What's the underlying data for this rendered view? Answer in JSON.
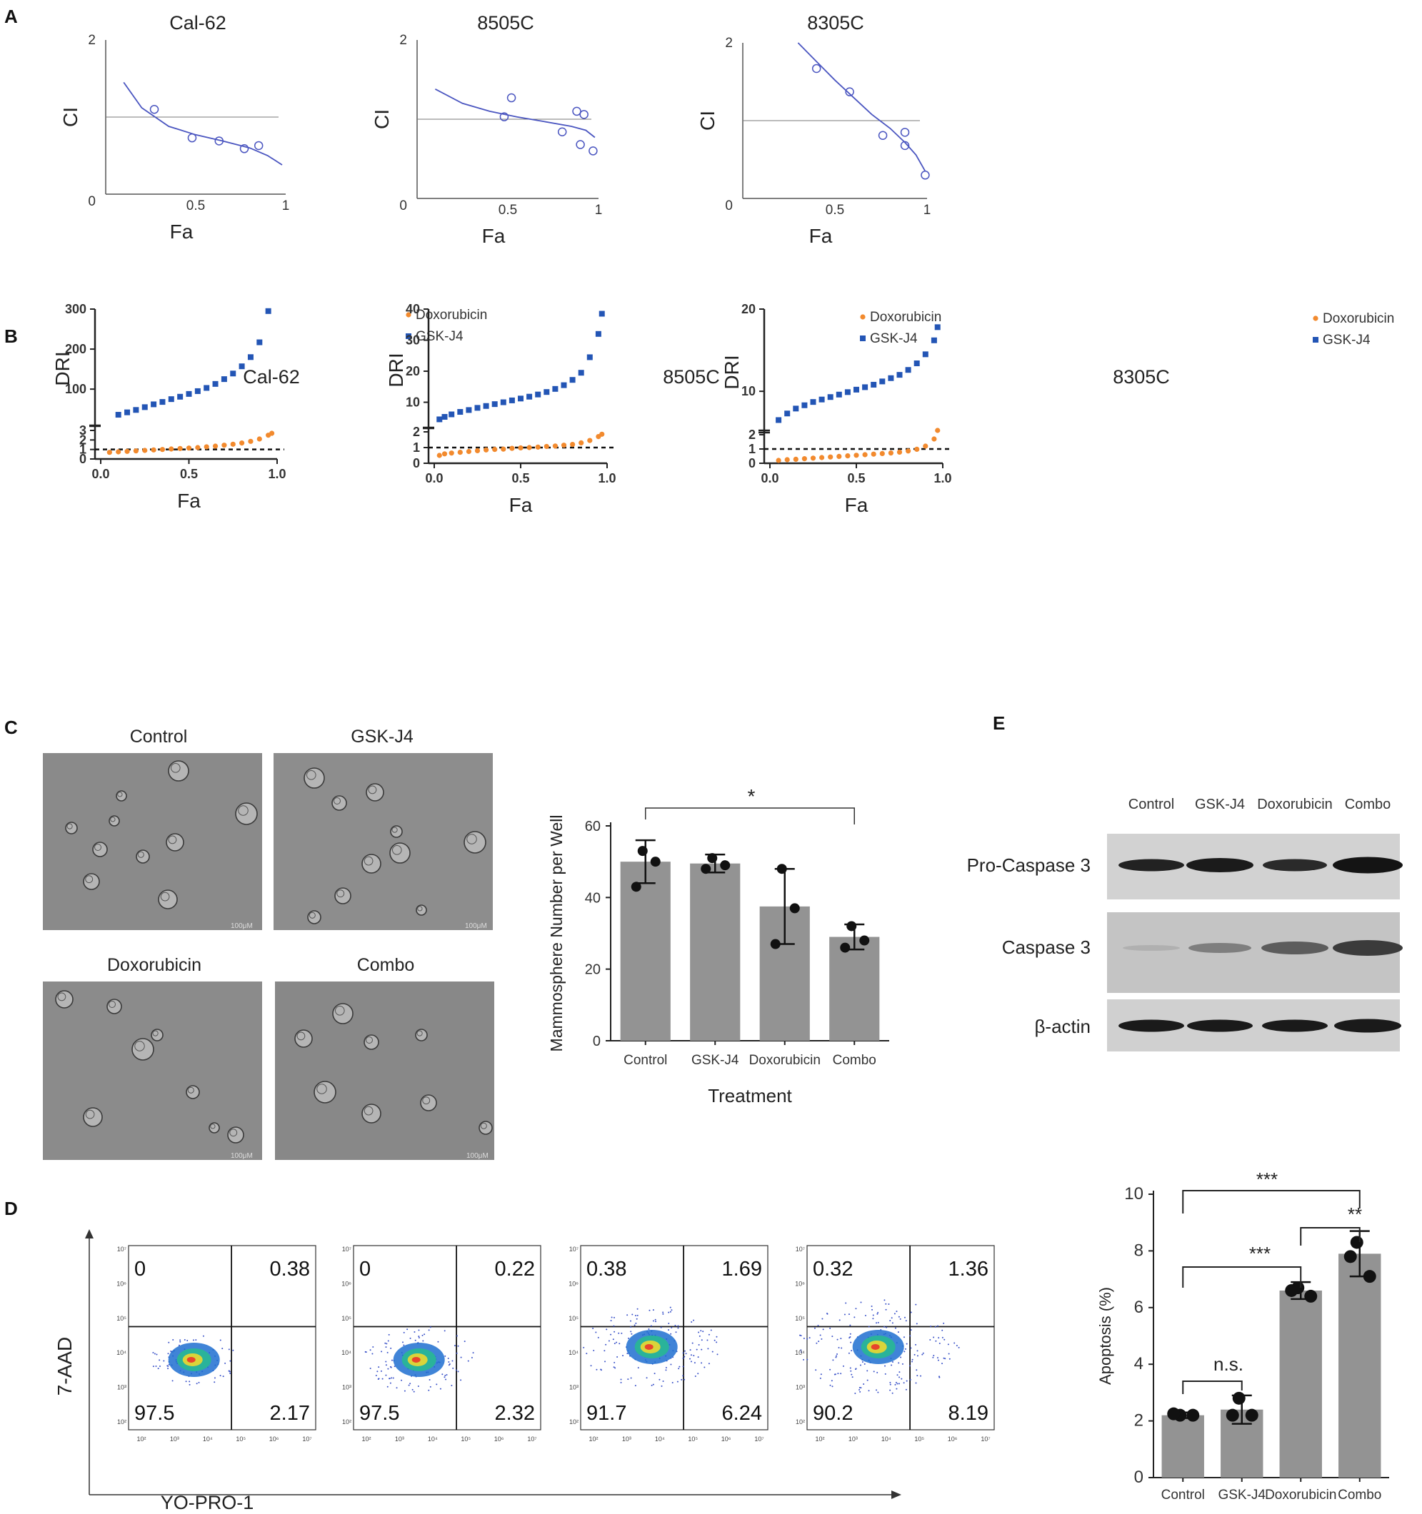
{
  "panels": {
    "A": "A",
    "B": "B",
    "C": "C",
    "D": "D",
    "E": "E"
  },
  "colors": {
    "ci_line": "#4a55c0",
    "dox": "#f28a2e",
    "gsk": "#2355b5",
    "bar": "#939393",
    "refline": "#555555"
  },
  "panelA": {
    "xlabel": "Fa",
    "ylabel": "CI",
    "tick_x": [
      "0.5",
      "1"
    ],
    "tick_y_top": "2",
    "tick_zero": "0"
  },
  "panelB": {
    "xlabel": "Fa",
    "ylabel": "DRI",
    "legend_dox": "Doxorubicin",
    "legend_gsk": "GSK-J4",
    "tick_x": [
      "0.0",
      "0.5",
      "1.0"
    ]
  },
  "panelC": {
    "images": [
      {
        "label": "Control",
        "scale": "100μM"
      },
      {
        "label": "GSK-J4",
        "scale": "100μM"
      },
      {
        "label": "Doxorubicin",
        "scale": "100μM"
      },
      {
        "label": "Combo",
        "scale": "100μM"
      }
    ],
    "sig": "*"
  },
  "panelD": {
    "xaxis": "YO-PRO-1",
    "yaxis": "7-AAD",
    "plots": [
      {
        "ul": "0",
        "ur": "0.38",
        "ll": "97.5",
        "lr": "2.17"
      },
      {
        "ul": "0",
        "ur": "0.22",
        "ll": "97.5",
        "lr": "2.32"
      },
      {
        "ul": "0.38",
        "ur": "1.69",
        "ll": "91.7",
        "lr": "6.24"
      },
      {
        "ul": "0.32",
        "ur": "1.36",
        "ll": "90.2",
        "lr": "8.19"
      }
    ],
    "exp_labels": [
      "10²",
      "10³",
      "10⁴",
      "10⁵",
      "10⁶",
      "10⁷"
    ],
    "sig": {
      "a": "***",
      "b": "***",
      "c": "**",
      "ns": "n.s."
    }
  },
  "panelE": {
    "columns": [
      "Control",
      "GSK-J4",
      "Doxorubicin",
      "Combo"
    ],
    "rows": [
      "Pro-Caspase 3",
      "Caspase 3",
      "β-actin"
    ]
  },
  "chart_data": [
    {
      "id": "A-Cal-62",
      "type": "scatter",
      "title": "Cal-62",
      "xlabel": "Fa",
      "ylabel": "CI",
      "xlim": [
        0,
        1
      ],
      "ylim": [
        0,
        2
      ],
      "points": [
        [
          0.27,
          1.1
        ],
        [
          0.48,
          0.73
        ],
        [
          0.63,
          0.69
        ],
        [
          0.77,
          0.59
        ],
        [
          0.85,
          0.63
        ]
      ],
      "fit": [
        [
          0.1,
          1.45
        ],
        [
          0.2,
          1.12
        ],
        [
          0.35,
          0.88
        ],
        [
          0.5,
          0.77
        ],
        [
          0.65,
          0.69
        ],
        [
          0.8,
          0.6
        ],
        [
          0.9,
          0.5
        ],
        [
          0.98,
          0.38
        ]
      ],
      "reference": 1
    },
    {
      "id": "A-8505C",
      "type": "scatter",
      "title": "8505C",
      "xlabel": "Fa",
      "ylabel": "CI",
      "xlim": [
        0,
        1
      ],
      "ylim": [
        0,
        2
      ],
      "points": [
        [
          0.48,
          1.03
        ],
        [
          0.52,
          1.27
        ],
        [
          0.8,
          0.84
        ],
        [
          0.88,
          1.1
        ],
        [
          0.92,
          1.06
        ],
        [
          0.9,
          0.68
        ],
        [
          0.97,
          0.6
        ]
      ],
      "fit": [
        [
          0.1,
          1.38
        ],
        [
          0.25,
          1.2
        ],
        [
          0.4,
          1.1
        ],
        [
          0.55,
          1.03
        ],
        [
          0.7,
          0.97
        ],
        [
          0.85,
          0.91
        ],
        [
          0.93,
          0.86
        ],
        [
          0.98,
          0.77
        ]
      ],
      "reference": 1
    },
    {
      "id": "A-8305C",
      "type": "scatter",
      "title": "8305C",
      "xlabel": "Fa",
      "ylabel": "CI",
      "xlim": [
        0,
        1
      ],
      "ylim": [
        0,
        2
      ],
      "points": [
        [
          0.4,
          1.67
        ],
        [
          0.58,
          1.37
        ],
        [
          0.76,
          0.81
        ],
        [
          0.88,
          0.85
        ],
        [
          0.88,
          0.68
        ],
        [
          0.99,
          0.3
        ]
      ],
      "fit": [
        [
          0.3,
          2.0
        ],
        [
          0.4,
          1.76
        ],
        [
          0.5,
          1.52
        ],
        [
          0.6,
          1.3
        ],
        [
          0.7,
          1.08
        ],
        [
          0.8,
          0.9
        ],
        [
          0.88,
          0.72
        ],
        [
          0.94,
          0.56
        ],
        [
          0.99,
          0.35
        ]
      ],
      "reference": 1
    },
    {
      "id": "B-Cal-62",
      "type": "scatter",
      "title": "Cal-62",
      "xlabel": "Fa",
      "ylabel": "DRI",
      "xlim": [
        0,
        1
      ],
      "ylim_top": [
        0,
        300
      ],
      "ylim_bottom": [
        0,
        3
      ],
      "yticks_top": [
        100,
        200,
        300
      ],
      "yticks_bottom": [
        0,
        1,
        2,
        3
      ],
      "series": [
        {
          "name": "GSK-J4",
          "x": [
            0.1,
            0.15,
            0.2,
            0.25,
            0.3,
            0.35,
            0.4,
            0.45,
            0.5,
            0.55,
            0.6,
            0.65,
            0.7,
            0.75,
            0.8,
            0.85,
            0.9,
            0.95
          ],
          "y": [
            36,
            42,
            48,
            55,
            62,
            68,
            75,
            81,
            88,
            95,
            103,
            113,
            125,
            139,
            157,
            180,
            217,
            295
          ]
        },
        {
          "name": "Doxorubicin",
          "x": [
            0.05,
            0.1,
            0.15,
            0.2,
            0.25,
            0.3,
            0.35,
            0.4,
            0.45,
            0.5,
            0.55,
            0.6,
            0.65,
            0.7,
            0.75,
            0.8,
            0.85,
            0.9,
            0.95,
            0.97
          ],
          "y": [
            0.7,
            0.75,
            0.8,
            0.85,
            0.9,
            0.95,
            1.0,
            1.05,
            1.1,
            1.15,
            1.2,
            1.28,
            1.35,
            1.45,
            1.55,
            1.68,
            1.85,
            2.1,
            2.5,
            2.7
          ]
        }
      ],
      "reference": 1
    },
    {
      "id": "B-8505C",
      "type": "scatter",
      "title": "8505C",
      "xlabel": "Fa",
      "ylabel": "DRI",
      "xlim": [
        0,
        1
      ],
      "ylim_top": [
        0,
        40
      ],
      "ylim_bottom": [
        0,
        2
      ],
      "yticks_top": [
        10,
        20,
        30,
        40
      ],
      "yticks_bottom": [
        0,
        1,
        2
      ],
      "series": [
        {
          "name": "GSK-J4",
          "x": [
            0.03,
            0.06,
            0.1,
            0.15,
            0.2,
            0.25,
            0.3,
            0.35,
            0.4,
            0.45,
            0.5,
            0.55,
            0.6,
            0.65,
            0.7,
            0.75,
            0.8,
            0.85,
            0.9,
            0.95,
            0.97
          ],
          "y": [
            4.5,
            5.3,
            6.1,
            6.9,
            7.5,
            8.2,
            8.8,
            9.4,
            10.0,
            10.6,
            11.2,
            11.8,
            12.5,
            13.3,
            14.3,
            15.5,
            17.2,
            19.5,
            24.5,
            32,
            38.5
          ]
        },
        {
          "name": "Doxorubicin",
          "x": [
            0.03,
            0.06,
            0.1,
            0.15,
            0.2,
            0.25,
            0.3,
            0.35,
            0.4,
            0.45,
            0.5,
            0.55,
            0.6,
            0.65,
            0.7,
            0.75,
            0.8,
            0.85,
            0.9,
            0.95,
            0.97
          ],
          "y": [
            0.5,
            0.6,
            0.65,
            0.7,
            0.75,
            0.8,
            0.85,
            0.88,
            0.9,
            0.95,
            0.98,
            1.0,
            1.03,
            1.07,
            1.1,
            1.15,
            1.2,
            1.3,
            1.45,
            1.7,
            1.85
          ]
        }
      ],
      "reference": 1
    },
    {
      "id": "B-8305C",
      "type": "scatter",
      "title": "8305C",
      "xlabel": "Fa",
      "ylabel": "DRI",
      "xlim": [
        0,
        1
      ],
      "ylim_top": [
        0,
        20
      ],
      "ylim_bottom": [
        0,
        2
      ],
      "yticks_top": [
        10,
        20
      ],
      "yticks_bottom": [
        0,
        1,
        2
      ],
      "series": [
        {
          "name": "GSK-J4",
          "x": [
            0.05,
            0.1,
            0.15,
            0.2,
            0.25,
            0.3,
            0.35,
            0.4,
            0.45,
            0.5,
            0.55,
            0.6,
            0.65,
            0.7,
            0.75,
            0.8,
            0.85,
            0.9,
            0.95,
            0.97
          ],
          "y": [
            6.5,
            7.3,
            7.9,
            8.3,
            8.7,
            9.0,
            9.3,
            9.6,
            9.9,
            10.2,
            10.5,
            10.8,
            11.2,
            11.6,
            12.0,
            12.6,
            13.4,
            14.5,
            16.2,
            17.8
          ]
        },
        {
          "name": "Doxorubicin",
          "x": [
            0.05,
            0.1,
            0.15,
            0.2,
            0.25,
            0.3,
            0.35,
            0.4,
            0.45,
            0.5,
            0.55,
            0.6,
            0.65,
            0.7,
            0.75,
            0.8,
            0.85,
            0.9,
            0.95,
            0.97
          ],
          "y": [
            0.2,
            0.25,
            0.28,
            0.32,
            0.36,
            0.4,
            0.44,
            0.48,
            0.52,
            0.56,
            0.6,
            0.64,
            0.68,
            0.72,
            0.78,
            0.86,
            0.98,
            1.2,
            1.7,
            2.3
          ]
        }
      ],
      "reference": 1
    },
    {
      "id": "C-bar",
      "type": "bar",
      "title": "",
      "xlabel": "Treatment",
      "ylabel": "Mammosphere Number per Well",
      "categories": [
        "Control",
        "GSK-J4",
        "Doxorubicin",
        "Combo"
      ],
      "values": [
        50,
        49.5,
        37.5,
        29
      ],
      "err": [
        6,
        2.5,
        10.5,
        3.5
      ],
      "points": [
        [
          53,
          43,
          50
        ],
        [
          51,
          48,
          49
        ],
        [
          48,
          27,
          37
        ],
        [
          32,
          26,
          28
        ]
      ],
      "ylim": [
        0,
        60
      ],
      "yticks": [
        0,
        20,
        40,
        60
      ]
    },
    {
      "id": "D-bar",
      "type": "bar",
      "title": "",
      "xlabel": "",
      "ylabel": "Apoptosis (%)",
      "categories": [
        "Control",
        "GSK-J4",
        "Doxorubicin",
        "Combo"
      ],
      "values": [
        2.2,
        2.4,
        6.6,
        7.9
      ],
      "err": [
        0.1,
        0.5,
        0.3,
        0.8
      ],
      "points": [
        [
          2.2,
          2.25,
          2.2
        ],
        [
          2.8,
          2.2,
          2.2
        ],
        [
          6.7,
          6.6,
          6.4
        ],
        [
          8.3,
          7.8,
          7.1
        ]
      ],
      "ylim": [
        0,
        10
      ],
      "yticks": [
        0,
        2,
        4,
        6,
        8,
        10
      ]
    }
  ]
}
